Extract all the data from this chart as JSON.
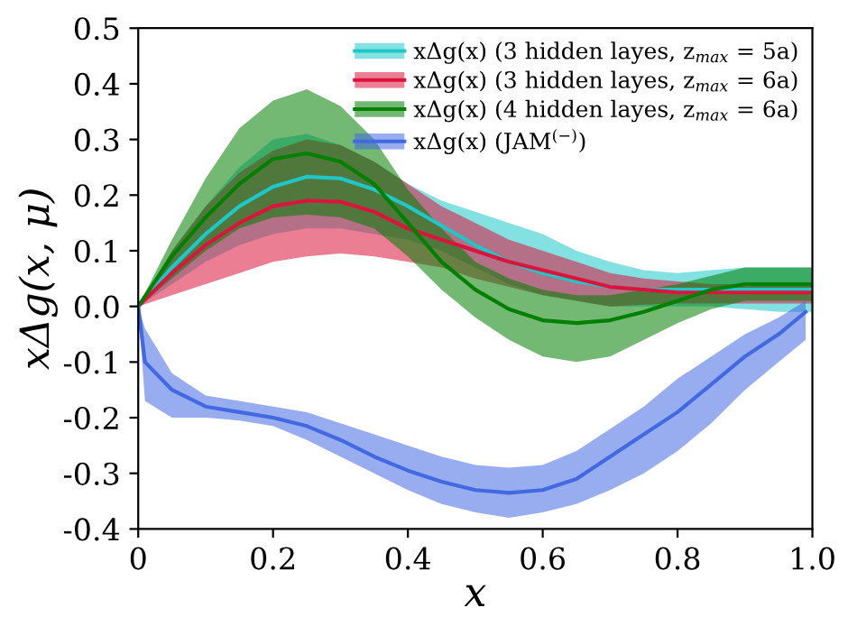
{
  "chart_data": {
    "type": "line",
    "xlabel": "x",
    "ylabel": "xΔg(x, μ)",
    "xlim": [
      0,
      1.0
    ],
    "ylim": [
      -0.4,
      0.5
    ],
    "xticks": [
      0,
      0.2,
      0.4,
      0.6,
      0.8,
      {
        "value": 1,
        "label": "1.0"
      }
    ],
    "yticks": [
      -0.4,
      -0.3,
      -0.2,
      -0.1,
      {
        "value": 0,
        "label": "0.0"
      },
      0.1,
      0.2,
      0.3,
      0.4,
      0.5
    ],
    "grid": false,
    "legend": "top right",
    "marker": "none",
    "line_style": "solid",
    "x": [
      0,
      0.05,
      0.1,
      0.15,
      0.2,
      0.25,
      0.3,
      0.35,
      0.4,
      0.45,
      0.5,
      0.55,
      0.6,
      0.65,
      0.7,
      0.75,
      0.8,
      0.85,
      0.9,
      0.95,
      1.0
    ],
    "series": [
      {
        "name": "xΔg(x) (3 hidden layes, z$_{max}$ = 5a)",
        "color": "#1fc8c8",
        "values": [
          0,
          0.07,
          0.13,
          0.18,
          0.215,
          0.233,
          0.23,
          0.21,
          0.18,
          0.145,
          0.11,
          0.08,
          0.06,
          0.045,
          0.035,
          0.03,
          0.03,
          0.03,
          0.03,
          0.03,
          0.03
        ],
        "lower": [
          0,
          0.04,
          0.08,
          0.11,
          0.13,
          0.14,
          0.14,
          0.13,
          0.12,
          0.1,
          0.07,
          0.04,
          0.02,
          0.01,
          0,
          0,
          0,
          0,
          -0.005,
          -0.01,
          -0.01
        ],
        "upper": [
          0,
          0.1,
          0.18,
          0.25,
          0.3,
          0.31,
          0.29,
          0.26,
          0.22,
          0.19,
          0.17,
          0.15,
          0.13,
          0.1,
          0.08,
          0.065,
          0.06,
          0.065,
          0.07,
          0.07,
          0.07
        ]
      },
      {
        "name": "xΔg(x) (3 hidden layes, z$_{max}$ = 6a)",
        "color": "#dc143c",
        "values": [
          0,
          0.06,
          0.11,
          0.15,
          0.18,
          0.19,
          0.188,
          0.17,
          0.14,
          0.12,
          0.1,
          0.08,
          0.065,
          0.05,
          0.035,
          0.03,
          0.025,
          0.025,
          0.025,
          0.025,
          0.025
        ],
        "lower": [
          0,
          0.02,
          0.04,
          0.06,
          0.08,
          0.09,
          0.095,
          0.09,
          0.08,
          0.07,
          0.05,
          0.035,
          0.02,
          0.01,
          0,
          0.003,
          0.005,
          0.005,
          0.005,
          0.005,
          0.005
        ],
        "upper": [
          0,
          0.1,
          0.18,
          0.24,
          0.28,
          0.3,
          0.29,
          0.26,
          0.22,
          0.18,
          0.15,
          0.12,
          0.1,
          0.08,
          0.06,
          0.05,
          0.045,
          0.04,
          0.04,
          0.04,
          0.04
        ]
      },
      {
        "name": "xΔg(x) (4 hidden layes, z$_{max}$ = 6a)",
        "color": "#008000",
        "values": [
          0,
          0.09,
          0.16,
          0.22,
          0.265,
          0.275,
          0.26,
          0.22,
          0.15,
          0.08,
          0.03,
          -0.005,
          -0.025,
          -0.03,
          -0.025,
          -0.01,
          0.01,
          0.03,
          0.04,
          0.04,
          0.04
        ],
        "lower": [
          0,
          0.05,
          0.1,
          0.14,
          0.16,
          0.165,
          0.16,
          0.14,
          0.09,
          0.03,
          -0.02,
          -0.06,
          -0.09,
          -0.1,
          -0.09,
          -0.06,
          -0.03,
          -0.005,
          0.01,
          0.01,
          0.01
        ],
        "upper": [
          0,
          0.12,
          0.23,
          0.32,
          0.37,
          0.39,
          0.36,
          0.3,
          0.21,
          0.14,
          0.08,
          0.05,
          0.03,
          0.02,
          0.02,
          0.03,
          0.04,
          0.055,
          0.07,
          0.07,
          0.07
        ]
      },
      {
        "name": "xΔg(x) (JAM$^{(−)}$)",
        "color": "#4169e1",
        "x": [
          0,
          0.01,
          0.05,
          0.1,
          0.15,
          0.2,
          0.25,
          0.3,
          0.35,
          0.4,
          0.45,
          0.5,
          0.55,
          0.6,
          0.65,
          0.7,
          0.75,
          0.8,
          0.85,
          0.9,
          0.95,
          0.99
        ],
        "values": [
          0,
          -0.1,
          -0.15,
          -0.18,
          -0.19,
          -0.2,
          -0.215,
          -0.24,
          -0.27,
          -0.295,
          -0.315,
          -0.33,
          -0.335,
          -0.33,
          -0.31,
          -0.27,
          -0.23,
          -0.19,
          -0.14,
          -0.09,
          -0.05,
          -0.01
        ],
        "lower": [
          0,
          -0.17,
          -0.2,
          -0.2,
          -0.205,
          -0.215,
          -0.24,
          -0.27,
          -0.3,
          -0.33,
          -0.355,
          -0.37,
          -0.38,
          -0.37,
          -0.355,
          -0.33,
          -0.3,
          -0.26,
          -0.21,
          -0.15,
          -0.1,
          -0.06
        ],
        "upper": [
          0,
          -0.04,
          -0.12,
          -0.16,
          -0.17,
          -0.18,
          -0.19,
          -0.21,
          -0.23,
          -0.25,
          -0.27,
          -0.285,
          -0.29,
          -0.285,
          -0.26,
          -0.22,
          -0.18,
          -0.13,
          -0.09,
          -0.05,
          -0.02,
          0.01
        ]
      }
    ]
  }
}
